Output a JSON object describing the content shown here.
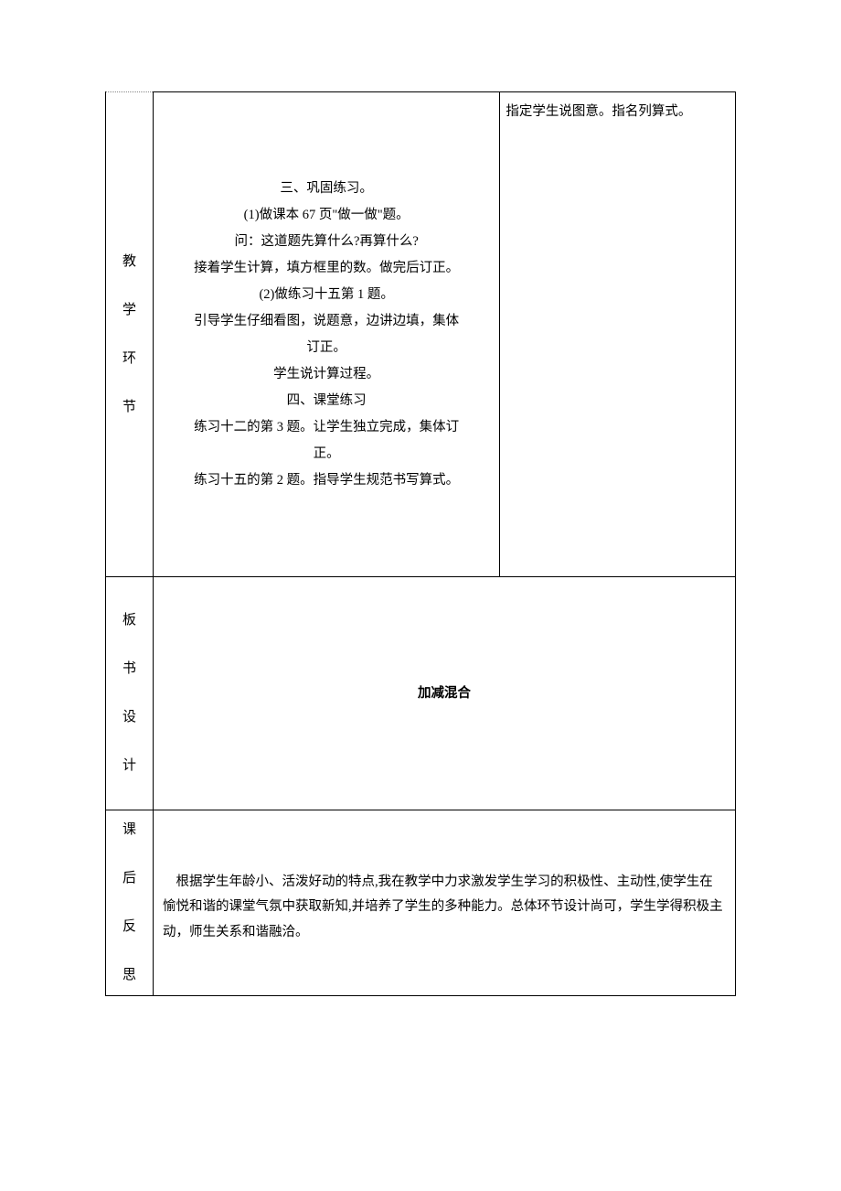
{
  "row1": {
    "label_chars": [
      "教",
      "学",
      "环",
      "节"
    ],
    "middle_lines": [
      "三、巩固练习。",
      "(1)做课本 67 页\"做一做\"题。",
      "问：这道题先算什么?再算什么?",
      "接着学生计算，填方框里的数。做完后订正。",
      "(2)做练习十五第 1 题。",
      "引导学生仔细看图，说题意，边讲边填，集体",
      "订正。",
      "学生说计算过程。",
      "四、课堂练习",
      "练习十二的第 3 题。让学生独立完成，集体订",
      "正。",
      "练习十五的第 2 题。指导学生规范书写算式。"
    ],
    "right_text": "指定学生说图意。指名列算式。"
  },
  "row2": {
    "label_chars": [
      "板",
      "书",
      "设",
      "计"
    ],
    "content": "加减混合"
  },
  "row3": {
    "label_chars": [
      "课",
      "后",
      "反",
      "思"
    ],
    "content_lines": [
      "根据学生年龄小、活泼好动的特点,我在教学中力求激发学生学习的积极性、主动性,使学生在愉悦和谐的课堂气氛中获取新知,并培养了学生的多种能力。总体环节设计尚可，学生学得积极主动，师生关系和谐融洽。"
    ]
  },
  "styles": {
    "background_color": "#ffffff",
    "border_color": "#000000",
    "text_color": "#000000",
    "font_size_body": 14.5,
    "font_size_label": 15,
    "font_family_body": "SimSun",
    "font_family_bold": "SimHei"
  }
}
